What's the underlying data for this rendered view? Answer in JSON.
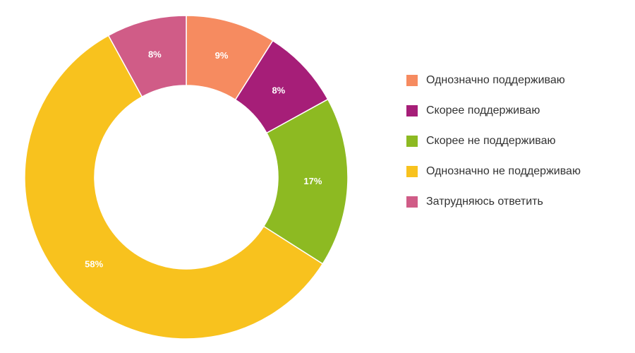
{
  "chart_data": {
    "type": "pie",
    "title": "",
    "legend_position": "right",
    "categories": [
      "Однозначно поддерживаю",
      "Скорее поддерживаю",
      "Скорее не поддерживаю",
      "Однозначно не поддерживаю",
      "Затрудняюсь ответить"
    ],
    "values": [
      9,
      8,
      17,
      58,
      8
    ],
    "value_labels": [
      "9%",
      "8%",
      "17%",
      "58%",
      "8%"
    ],
    "colors": [
      "#F68B60",
      "#A61E78",
      "#8DBA22",
      "#F8C21E",
      "#D05C87"
    ]
  }
}
